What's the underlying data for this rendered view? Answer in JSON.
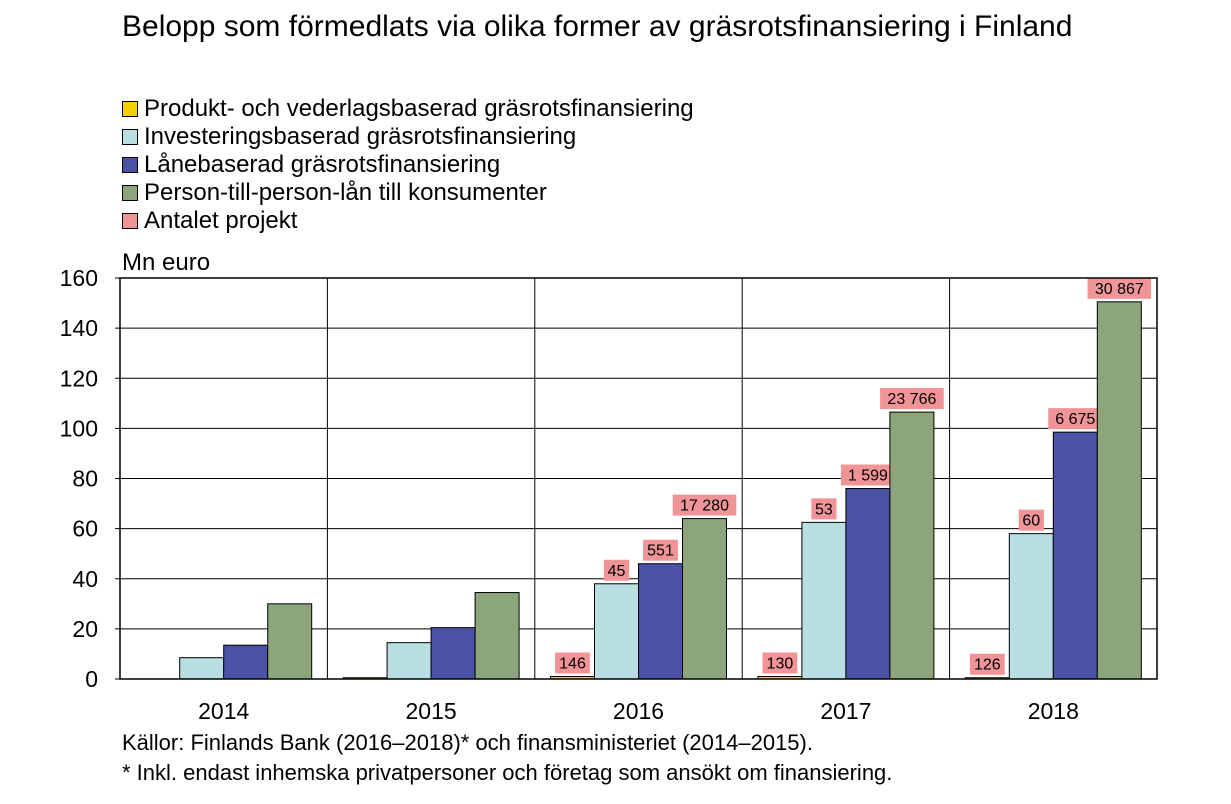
{
  "title": "Belopp som förmedlats via olika former av gräsrotsfinansiering i Finland",
  "unit_label": "Mn euro",
  "source": {
    "line1": "Källor: Finlands Bank (2016–2018)* och finansministeriet (2014–2015).",
    "line2": "* Inkl. endast inhemska privatpersoner och företag som ansökt om finansiering."
  },
  "legend": [
    {
      "label": "Produkt- och vederlagsbaserad gräsrotsfinansiering",
      "color": "#F5D000"
    },
    {
      "label": "Investeringsbaserad gräsrotsfinansiering",
      "color": "#B9DFE2"
    },
    {
      "label": "Lånebaserad gräsrotsfinansiering",
      "color": "#4B52A5"
    },
    {
      "label": "Person-till-person-lån till konsumenter",
      "color": "#8CA57A"
    },
    {
      "label": "Antalet projekt",
      "color": "#F09497"
    }
  ],
  "chart_data": {
    "type": "bar",
    "ylabel": "Mn euro",
    "ylim": [
      0,
      160
    ],
    "yticks": [
      0,
      20,
      40,
      60,
      80,
      100,
      120,
      140,
      160
    ],
    "grid": true,
    "categories": [
      "2014",
      "2015",
      "2016",
      "2017",
      "2018"
    ],
    "series": [
      {
        "name": "Produkt- och vederlagsbaserad gräsrotsfinansiering",
        "color": "#F5D000",
        "values": [
          0,
          0.5,
          1,
          1,
          0.5
        ],
        "labels": [
          "",
          "",
          "146",
          "130",
          "126"
        ]
      },
      {
        "name": "Investeringsbaserad gräsrotsfinansiering",
        "color": "#B9DFE2",
        "values": [
          8.5,
          14.5,
          38,
          62.5,
          58
        ],
        "labels": [
          "",
          "",
          "45",
          "53",
          "60"
        ]
      },
      {
        "name": "Lånebaserad gräsrotsfinansiering",
        "color": "#4B52A5",
        "values": [
          13.5,
          20.5,
          46,
          76,
          98.5
        ],
        "labels": [
          "",
          "",
          "551",
          "1 599",
          "6 675"
        ]
      },
      {
        "name": "Person-till-person-lån till konsumenter",
        "color": "#8CA57A",
        "values": [
          30,
          34.5,
          64,
          106.5,
          150.5
        ],
        "labels": [
          "",
          "",
          "17 280",
          "23 766",
          "30 867"
        ]
      }
    ],
    "label_series": "Antalet projekt",
    "label_color": "#F09497"
  }
}
